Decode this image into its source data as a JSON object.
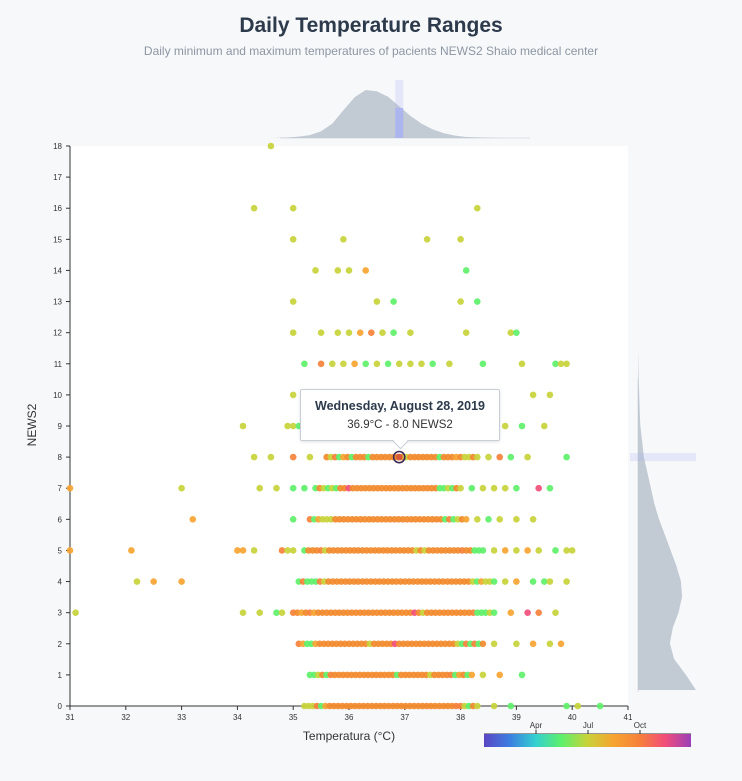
{
  "header": {
    "title": "Daily Temperature Ranges",
    "subtitle": "Daily minimum and maximum temperatures of pacients NEWS2 Shaio medical center"
  },
  "tooltip": {
    "title": "Wednesday, August 28, 2019",
    "body": "36.9°C - 8.0 NEWS2"
  },
  "colors": {
    "plot_bg": "#ffffff",
    "page_bg": "#f7f8fa",
    "density_fill": "#b9c2cc",
    "highlight_band": "#aab4ee",
    "dominant_point": "#f28a2c",
    "scale": [
      "#5b46c4",
      "#3b7fe0",
      "#34d0d0",
      "#5ef06a",
      "#c8d23a",
      "#f6a431",
      "#f6813a",
      "#f24e7a",
      "#9a3fb8"
    ]
  },
  "color_legend": {
    "ticks": [
      "Apr",
      "Jul",
      "Oct"
    ]
  },
  "chart_data": {
    "type": "scatter",
    "xlabel": "Temperatura (°C)",
    "ylabel": "NEWS2",
    "xlim": [
      31,
      41
    ],
    "ylim": [
      0,
      18
    ],
    "x_ticks": [
      31,
      32,
      33,
      34,
      35,
      36,
      37,
      38,
      39,
      40,
      41
    ],
    "y_ticks": [
      0,
      1,
      2,
      3,
      4,
      5,
      6,
      7,
      8,
      9,
      10,
      11,
      12,
      13,
      14,
      15,
      16,
      17,
      18
    ],
    "highlight": {
      "x": 36.9,
      "y": 8
    },
    "dense_bands": [
      {
        "y": 0,
        "x_min": 35.2,
        "x_max": 38.3
      },
      {
        "y": 1,
        "x_min": 35.3,
        "x_max": 38.2
      },
      {
        "y": 2,
        "x_min": 35.1,
        "x_max": 38.4
      },
      {
        "y": 3,
        "x_min": 35.0,
        "x_max": 38.6
      },
      {
        "y": 4,
        "x_min": 35.1,
        "x_max": 38.6
      },
      {
        "y": 5,
        "x_min": 35.2,
        "x_max": 38.4
      },
      {
        "y": 6,
        "x_min": 35.3,
        "x_max": 38.1
      },
      {
        "y": 7,
        "x_min": 35.4,
        "x_max": 38.0
      },
      {
        "y": 8,
        "x_min": 35.6,
        "x_max": 38.3
      }
    ],
    "sparse_points": [
      {
        "x": 34.6,
        "y": 18,
        "c": 4
      },
      {
        "x": 34.3,
        "y": 16,
        "c": 4
      },
      {
        "x": 35.0,
        "y": 16,
        "c": 4
      },
      {
        "x": 38.3,
        "y": 16,
        "c": 4
      },
      {
        "x": 35.0,
        "y": 15,
        "c": 4
      },
      {
        "x": 35.9,
        "y": 15,
        "c": 4
      },
      {
        "x": 37.4,
        "y": 15,
        "c": 4
      },
      {
        "x": 38.0,
        "y": 15,
        "c": 4
      },
      {
        "x": 35.4,
        "y": 14,
        "c": 4
      },
      {
        "x": 35.8,
        "y": 14,
        "c": 4
      },
      {
        "x": 36.0,
        "y": 14,
        "c": 4
      },
      {
        "x": 36.3,
        "y": 14,
        "c": 5
      },
      {
        "x": 38.1,
        "y": 14,
        "c": 3
      },
      {
        "x": 35.0,
        "y": 13,
        "c": 4
      },
      {
        "x": 36.5,
        "y": 13,
        "c": 4
      },
      {
        "x": 36.8,
        "y": 13,
        "c": 3
      },
      {
        "x": 38.0,
        "y": 13,
        "c": 4
      },
      {
        "x": 38.3,
        "y": 13,
        "c": 3
      },
      {
        "x": 35.0,
        "y": 12,
        "c": 4
      },
      {
        "x": 35.5,
        "y": 12,
        "c": 4
      },
      {
        "x": 35.8,
        "y": 12,
        "c": 4
      },
      {
        "x": 36.0,
        "y": 12,
        "c": 4
      },
      {
        "x": 36.2,
        "y": 12,
        "c": 5
      },
      {
        "x": 36.4,
        "y": 12,
        "c": 6
      },
      {
        "x": 36.6,
        "y": 12,
        "c": 4
      },
      {
        "x": 36.8,
        "y": 12,
        "c": 3
      },
      {
        "x": 37.1,
        "y": 12,
        "c": 4
      },
      {
        "x": 38.1,
        "y": 12,
        "c": 4
      },
      {
        "x": 38.9,
        "y": 12,
        "c": 4
      },
      {
        "x": 39.0,
        "y": 12,
        "c": 3
      },
      {
        "x": 35.2,
        "y": 11,
        "c": 3
      },
      {
        "x": 35.5,
        "y": 11,
        "c": 6
      },
      {
        "x": 35.7,
        "y": 11,
        "c": 4
      },
      {
        "x": 35.9,
        "y": 11,
        "c": 4
      },
      {
        "x": 36.1,
        "y": 11,
        "c": 5
      },
      {
        "x": 36.3,
        "y": 11,
        "c": 3
      },
      {
        "x": 36.5,
        "y": 11,
        "c": 4
      },
      {
        "x": 36.7,
        "y": 11,
        "c": 3
      },
      {
        "x": 36.9,
        "y": 11,
        "c": 4
      },
      {
        "x": 37.1,
        "y": 11,
        "c": 4
      },
      {
        "x": 37.3,
        "y": 11,
        "c": 4
      },
      {
        "x": 37.5,
        "y": 11,
        "c": 3
      },
      {
        "x": 37.8,
        "y": 11,
        "c": 4
      },
      {
        "x": 38.4,
        "y": 11,
        "c": 3
      },
      {
        "x": 39.1,
        "y": 11,
        "c": 4
      },
      {
        "x": 39.7,
        "y": 11,
        "c": 3
      },
      {
        "x": 39.8,
        "y": 11,
        "c": 4
      },
      {
        "x": 39.9,
        "y": 11,
        "c": 4
      },
      {
        "x": 35.0,
        "y": 10,
        "c": 4
      },
      {
        "x": 39.3,
        "y": 10,
        "c": 4
      },
      {
        "x": 39.6,
        "y": 10,
        "c": 4
      },
      {
        "x": 34.1,
        "y": 9,
        "c": 4
      },
      {
        "x": 34.9,
        "y": 9,
        "c": 4
      },
      {
        "x": 35.0,
        "y": 9,
        "c": 4
      },
      {
        "x": 35.1,
        "y": 9,
        "c": 3
      },
      {
        "x": 38.1,
        "y": 9,
        "c": 4
      },
      {
        "x": 38.8,
        "y": 9,
        "c": 4
      },
      {
        "x": 39.1,
        "y": 9,
        "c": 3
      },
      {
        "x": 39.5,
        "y": 9,
        "c": 4
      },
      {
        "x": 34.3,
        "y": 8,
        "c": 4
      },
      {
        "x": 34.6,
        "y": 8,
        "c": 4
      },
      {
        "x": 35.0,
        "y": 8,
        "c": 6
      },
      {
        "x": 35.3,
        "y": 8,
        "c": 4
      },
      {
        "x": 38.5,
        "y": 8,
        "c": 4
      },
      {
        "x": 38.7,
        "y": 8,
        "c": 6
      },
      {
        "x": 38.9,
        "y": 8,
        "c": 3
      },
      {
        "x": 39.2,
        "y": 8,
        "c": 4
      },
      {
        "x": 39.9,
        "y": 8,
        "c": 3
      },
      {
        "x": 31.0,
        "y": 7,
        "c": 5
      },
      {
        "x": 33.0,
        "y": 7,
        "c": 4
      },
      {
        "x": 34.4,
        "y": 7,
        "c": 4
      },
      {
        "x": 34.7,
        "y": 7,
        "c": 4
      },
      {
        "x": 35.0,
        "y": 7,
        "c": 3
      },
      {
        "x": 35.2,
        "y": 7,
        "c": 3
      },
      {
        "x": 38.2,
        "y": 7,
        "c": 3
      },
      {
        "x": 38.4,
        "y": 7,
        "c": 4
      },
      {
        "x": 38.6,
        "y": 7,
        "c": 4
      },
      {
        "x": 38.8,
        "y": 7,
        "c": 4
      },
      {
        "x": 39.0,
        "y": 7,
        "c": 3
      },
      {
        "x": 39.4,
        "y": 7,
        "c": 7
      },
      {
        "x": 39.6,
        "y": 7,
        "c": 3
      },
      {
        "x": 33.2,
        "y": 6,
        "c": 5
      },
      {
        "x": 35.0,
        "y": 6,
        "c": 3
      },
      {
        "x": 38.3,
        "y": 6,
        "c": 4
      },
      {
        "x": 38.5,
        "y": 6,
        "c": 3
      },
      {
        "x": 38.7,
        "y": 6,
        "c": 4
      },
      {
        "x": 39.0,
        "y": 6,
        "c": 4
      },
      {
        "x": 39.3,
        "y": 6,
        "c": 4
      },
      {
        "x": 31.0,
        "y": 5,
        "c": 5
      },
      {
        "x": 32.1,
        "y": 5,
        "c": 5
      },
      {
        "x": 34.0,
        "y": 5,
        "c": 5
      },
      {
        "x": 34.1,
        "y": 5,
        "c": 5
      },
      {
        "x": 34.3,
        "y": 5,
        "c": 4
      },
      {
        "x": 34.8,
        "y": 5,
        "c": 6
      },
      {
        "x": 34.9,
        "y": 5,
        "c": 4
      },
      {
        "x": 35.0,
        "y": 5,
        "c": 4
      },
      {
        "x": 38.6,
        "y": 5,
        "c": 4
      },
      {
        "x": 38.8,
        "y": 5,
        "c": 5
      },
      {
        "x": 39.0,
        "y": 5,
        "c": 4
      },
      {
        "x": 39.2,
        "y": 5,
        "c": 5
      },
      {
        "x": 39.4,
        "y": 5,
        "c": 4
      },
      {
        "x": 39.7,
        "y": 5,
        "c": 3
      },
      {
        "x": 39.9,
        "y": 5,
        "c": 4
      },
      {
        "x": 40.0,
        "y": 5,
        "c": 4
      },
      {
        "x": 32.2,
        "y": 4,
        "c": 4
      },
      {
        "x": 32.5,
        "y": 4,
        "c": 5
      },
      {
        "x": 33.0,
        "y": 4,
        "c": 5
      },
      {
        "x": 38.8,
        "y": 4,
        "c": 4
      },
      {
        "x": 39.0,
        "y": 4,
        "c": 5
      },
      {
        "x": 39.3,
        "y": 4,
        "c": 3
      },
      {
        "x": 39.5,
        "y": 4,
        "c": 3
      },
      {
        "x": 39.6,
        "y": 4,
        "c": 4
      },
      {
        "x": 39.9,
        "y": 4,
        "c": 4
      },
      {
        "x": 31.1,
        "y": 3,
        "c": 4
      },
      {
        "x": 34.1,
        "y": 3,
        "c": 4
      },
      {
        "x": 34.4,
        "y": 3,
        "c": 4
      },
      {
        "x": 34.7,
        "y": 3,
        "c": 3
      },
      {
        "x": 34.8,
        "y": 3,
        "c": 4
      },
      {
        "x": 38.9,
        "y": 3,
        "c": 5
      },
      {
        "x": 39.2,
        "y": 3,
        "c": 7
      },
      {
        "x": 39.4,
        "y": 3,
        "c": 6
      },
      {
        "x": 39.7,
        "y": 3,
        "c": 4
      },
      {
        "x": 38.6,
        "y": 2,
        "c": 4
      },
      {
        "x": 39.0,
        "y": 2,
        "c": 4
      },
      {
        "x": 39.3,
        "y": 2,
        "c": 5
      },
      {
        "x": 39.6,
        "y": 2,
        "c": 4
      },
      {
        "x": 39.8,
        "y": 2,
        "c": 5
      },
      {
        "x": 38.4,
        "y": 1,
        "c": 4
      },
      {
        "x": 38.7,
        "y": 1,
        "c": 5
      },
      {
        "x": 39.1,
        "y": 1,
        "c": 3
      },
      {
        "x": 38.6,
        "y": 0,
        "c": 4
      },
      {
        "x": 38.9,
        "y": 0,
        "c": 3
      },
      {
        "x": 39.9,
        "y": 0,
        "c": 3
      },
      {
        "x": 40.1,
        "y": 0,
        "c": 4
      },
      {
        "x": 40.5,
        "y": 0,
        "c": 3
      }
    ],
    "x_density": [
      [
        34.6,
        0.0
      ],
      [
        34.9,
        0.01
      ],
      [
        35.1,
        0.03
      ],
      [
        35.3,
        0.06
      ],
      [
        35.5,
        0.14
      ],
      [
        35.7,
        0.3
      ],
      [
        35.9,
        0.58
      ],
      [
        36.1,
        0.85
      ],
      [
        36.3,
        1.0
      ],
      [
        36.5,
        0.97
      ],
      [
        36.7,
        0.86
      ],
      [
        36.9,
        0.66
      ],
      [
        37.1,
        0.46
      ],
      [
        37.3,
        0.3
      ],
      [
        37.5,
        0.18
      ],
      [
        37.7,
        0.1
      ],
      [
        37.9,
        0.05
      ],
      [
        38.1,
        0.02
      ],
      [
        38.4,
        0.01
      ],
      [
        38.7,
        0.0
      ]
    ],
    "y_density": [
      [
        0,
        1.0
      ],
      [
        0.5,
        0.82
      ],
      [
        1,
        0.62
      ],
      [
        1.5,
        0.55
      ],
      [
        2,
        0.6
      ],
      [
        2.5,
        0.7
      ],
      [
        3,
        0.76
      ],
      [
        3.5,
        0.74
      ],
      [
        4,
        0.66
      ],
      [
        4.5,
        0.56
      ],
      [
        5,
        0.46
      ],
      [
        5.5,
        0.36
      ],
      [
        6,
        0.28
      ],
      [
        6.5,
        0.22
      ],
      [
        7,
        0.16
      ],
      [
        7.5,
        0.1
      ],
      [
        8,
        0.07
      ],
      [
        8.5,
        0.04
      ],
      [
        9,
        0.03
      ],
      [
        9.5,
        0.02
      ],
      [
        10,
        0.01
      ],
      [
        10.5,
        0.005
      ],
      [
        11,
        0.0
      ]
    ]
  }
}
